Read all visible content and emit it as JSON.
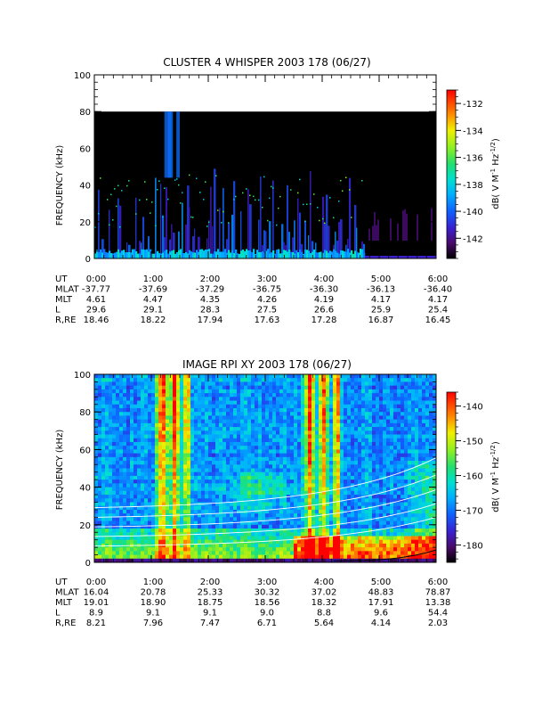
{
  "chart_data": [
    {
      "type": "heatmap",
      "title": "CLUSTER 4 WHISPER 2003 178 (06/27)",
      "ylabel": "FREQUENCY (kHz)",
      "xlim": [
        "0:00",
        "6:00"
      ],
      "ylim": [
        0,
        100
      ],
      "yticks": [
        "0",
        "20",
        "40",
        "60",
        "80",
        "100"
      ],
      "data_upper_frequency_khz": 80,
      "colorbar": {
        "label": "dB( V M",
        "label_sup1": "-1",
        "label_mid": " Hz",
        "label_sup2": "-1/2",
        "label_end": ")",
        "range": [
          -143.5,
          -131
        ],
        "ticks": [
          "-132",
          "-134",
          "-136",
          "-138",
          "-140",
          "-142"
        ]
      },
      "ephemeris": {
        "rows": [
          {
            "label": "UT",
            "values": [
              "0:00",
              "1:00",
              "2:00",
              "3:00",
              "4:00",
              "5:00",
              "6:00"
            ]
          },
          {
            "label": "MLAT",
            "values": [
              "-37.77",
              "-37.69",
              "-37.29",
              "-36.75",
              "-36.30",
              "-36.13",
              "-36.40"
            ]
          },
          {
            "label": "MLT",
            "values": [
              "4.61",
              "4.47",
              "4.35",
              "4.26",
              "4.19",
              "4.17",
              "4.17"
            ]
          },
          {
            "label": "L",
            "values": [
              "29.6",
              "29.1",
              "28.3",
              "27.5",
              "26.6",
              "25.9",
              "25.4"
            ]
          },
          {
            "label": "R,RE",
            "values": [
              "18.46",
              "18.22",
              "17.94",
              "17.63",
              "17.28",
              "16.87",
              "16.45"
            ]
          }
        ]
      }
    },
    {
      "type": "heatmap",
      "title": "IMAGE RPI XY 2003 178 (06/27)",
      "ylabel": "FREQUENCY (kHz)",
      "xlim": [
        "0:00",
        "6:00"
      ],
      "ylim": [
        0,
        100
      ],
      "yticks": [
        "0",
        "20",
        "40",
        "60",
        "80",
        "100"
      ],
      "colorbar": {
        "label": "dB( V M",
        "label_sup1": "-1",
        "label_mid": " Hz",
        "label_sup2": "-1/2",
        "label_end": ")",
        "range": [
          -185,
          -136
        ],
        "ticks": [
          "-140",
          "-150",
          "-160",
          "-170",
          "-180"
        ]
      },
      "ephemeris": {
        "rows": [
          {
            "label": "UT",
            "values": [
              "0:00",
              "1:00",
              "2:00",
              "3:00",
              "4:00",
              "5:00",
              "6:00"
            ]
          },
          {
            "label": "MLAT",
            "values": [
              "16.04",
              "20.78",
              "25.33",
              "30.32",
              "37.02",
              "48.83",
              "78.87"
            ]
          },
          {
            "label": "MLT",
            "values": [
              "19.01",
              "18.90",
              "18.75",
              "18.56",
              "18.32",
              "17.91",
              "13.38"
            ]
          },
          {
            "label": "L",
            "values": [
              "8.9",
              "9.1",
              "9.1",
              "9.0",
              "8.8",
              "9.6",
              "54.4"
            ]
          },
          {
            "label": "R,RE",
            "values": [
              "8.21",
              "7.96",
              "7.47",
              "6.71",
              "5.64",
              "4.14",
              "2.03"
            ]
          }
        ]
      }
    }
  ]
}
